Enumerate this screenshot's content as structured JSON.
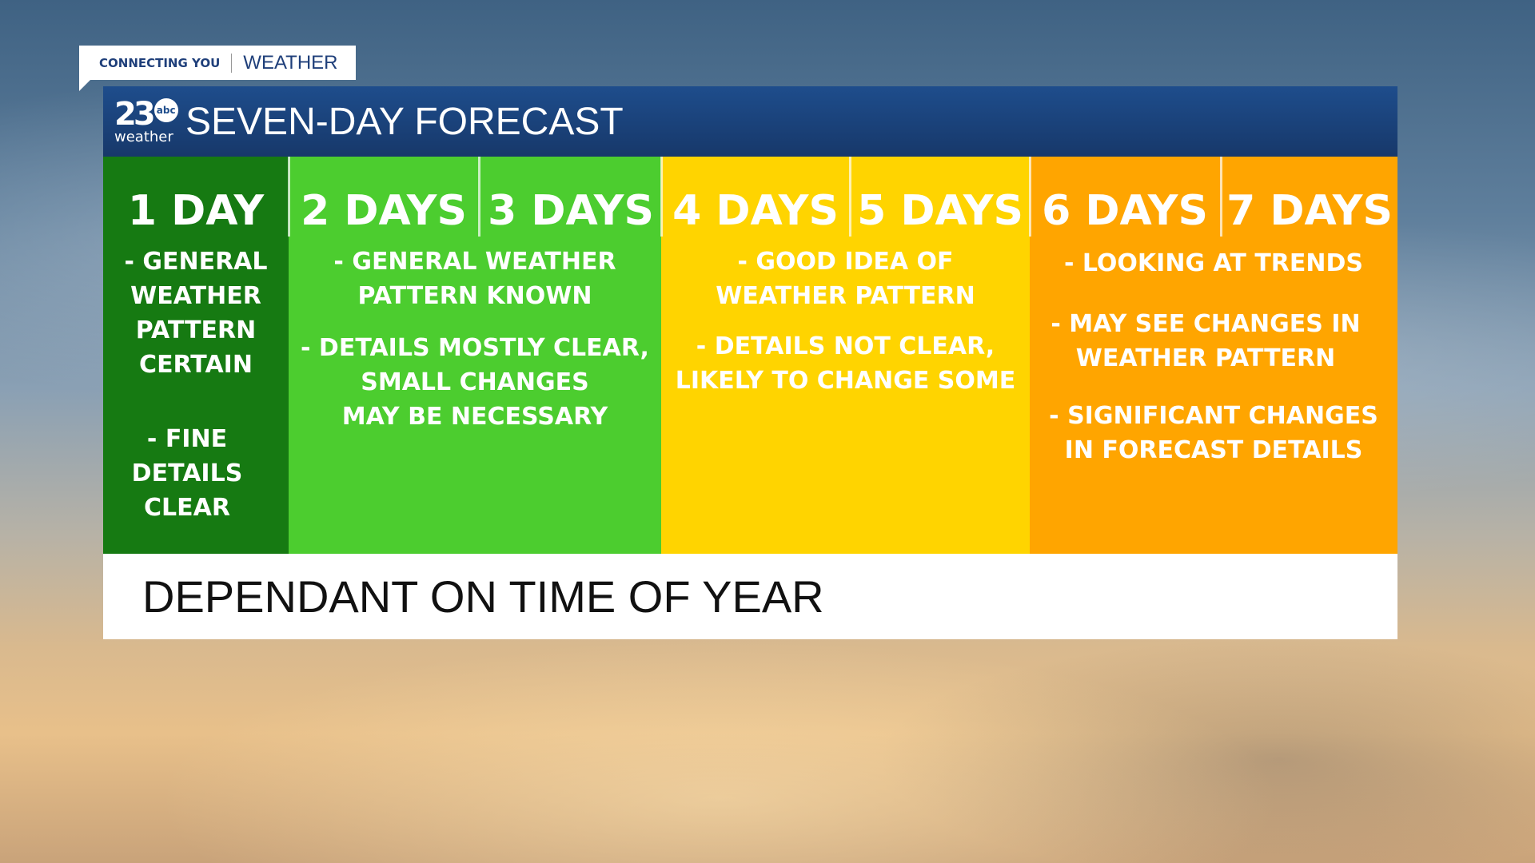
{
  "tag": {
    "left": "CONNECTING YOU",
    "right": "WEATHER"
  },
  "logo": {
    "number": "23",
    "network": "abc",
    "word": "weather"
  },
  "header": {
    "title": "SEVEN-DAY FORECAST"
  },
  "colors": {
    "day1": "#167a12",
    "days23": "#4ccd2f",
    "days45": "#ffd400",
    "days67": "#ffa500",
    "header": "#1c4a86"
  },
  "days": [
    "1 DAY",
    "2 DAYS",
    "3 DAYS",
    "4 DAYS",
    "5 DAYS",
    "6 DAYS",
    "7 DAYS"
  ],
  "groups": [
    {
      "notes": [
        "- GENERAL\nWEATHER\nPATTERN\nCERTAIN",
        "- FINE\nDETAILS\nCLEAR"
      ]
    },
    {
      "notes": [
        "- GENERAL WEATHER\nPATTERN KNOWN",
        "- DETAILS MOSTLY CLEAR,\nSMALL CHANGES\nMAY BE NECESSARY"
      ]
    },
    {
      "notes": [
        "- GOOD IDEA OF\nWEATHER PATTERN",
        "- DETAILS NOT CLEAR,\nLIKELY TO CHANGE SOME"
      ]
    },
    {
      "notes": [
        "- LOOKING AT TRENDS",
        "- MAY SEE CHANGES IN\nWEATHER PATTERN",
        "- SIGNIFICANT CHANGES\nIN FORECAST DETAILS"
      ]
    }
  ],
  "footer": "DEPENDANT ON TIME OF YEAR"
}
